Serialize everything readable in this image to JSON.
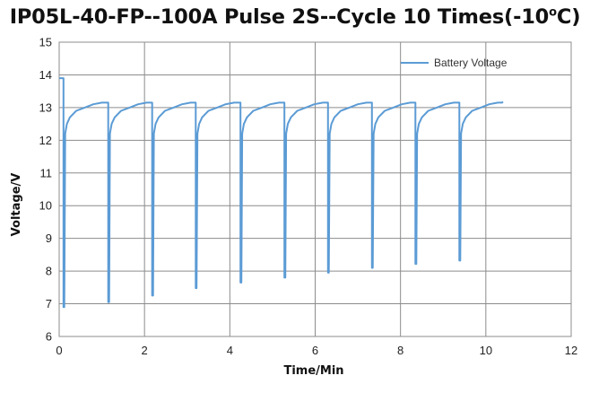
{
  "chart_data": {
    "type": "line",
    "title_main": "IP05L-40-FP--100A Pulse 2S--Cycle 10 Times(-10",
    "title_degree": "o",
    "title_end": "C)",
    "xlabel": "Time/Min",
    "ylabel": "Voltage/V",
    "xlim": [
      0,
      12
    ],
    "ylim": [
      6,
      15
    ],
    "x_ticks": [
      "0",
      "2",
      "4",
      "6",
      "8",
      "10",
      "12"
    ],
    "y_ticks": [
      "6",
      "7",
      "8",
      "9",
      "10",
      "11",
      "12",
      "13",
      "14",
      "15"
    ],
    "grid": true,
    "legend_position": "top-right",
    "series": [
      {
        "name": "Battery Voltage",
        "color": "#5b9bd5",
        "initial": [
          [
            0.0,
            13.9
          ],
          [
            0.1,
            13.9
          ]
        ],
        "pulse_times": [
          0.1,
          1.15,
          2.18,
          3.2,
          4.25,
          5.28,
          6.3,
          7.33,
          8.35,
          9.38
        ],
        "pulse_min_voltages": [
          6.9,
          7.05,
          7.25,
          7.48,
          7.65,
          7.8,
          7.95,
          8.1,
          8.22,
          8.32
        ],
        "recovery": [
          [
            0.04,
            12.2
          ],
          [
            0.08,
            12.5
          ],
          [
            0.15,
            12.7
          ],
          [
            0.3,
            12.9
          ],
          [
            0.5,
            13.0
          ],
          [
            0.7,
            13.1
          ],
          [
            0.9,
            13.15
          ],
          [
            1.0,
            13.15
          ]
        ],
        "end": [
          10.4,
          13.18
        ]
      }
    ]
  }
}
